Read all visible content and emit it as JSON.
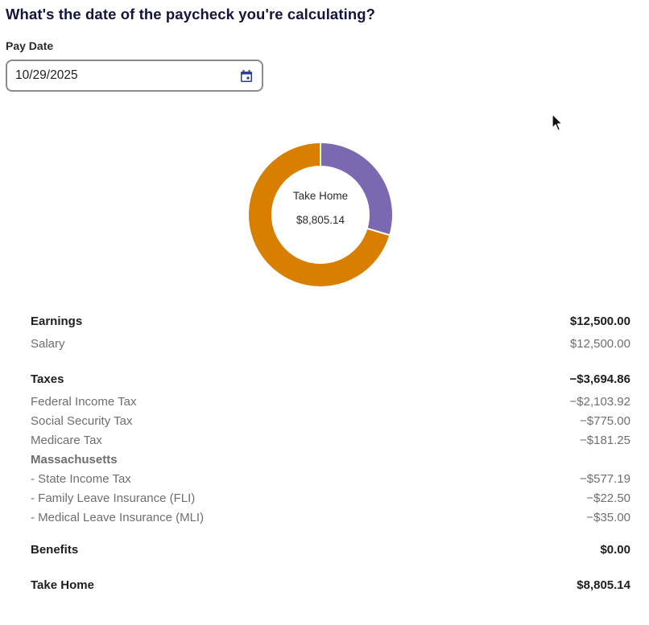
{
  "header": {
    "question": "What's the date of the paycheck you're calculating?"
  },
  "pay_date": {
    "label": "Pay Date",
    "value": "10/29/2025"
  },
  "icons": {
    "calendar": "calendar-icon",
    "cursor": "mouse-pointer-icon"
  },
  "colors": {
    "take_home": "#d97f00",
    "taxes": "#7a68b1",
    "title": "#14153a"
  },
  "chart_data": {
    "type": "pie",
    "donut": true,
    "center_title": "Take Home",
    "center_value": "$8,805.14",
    "slices": [
      {
        "category": "Taxes",
        "value": 3694.86,
        "color": "#7a68b1"
      },
      {
        "category": "Take Home",
        "value": 8805.14,
        "color": "#d97f00"
      }
    ]
  },
  "breakdown": {
    "earnings": {
      "label": "Earnings",
      "amount": "$12,500.00",
      "items": [
        {
          "label": "Salary",
          "amount": "$12,500.00"
        }
      ]
    },
    "taxes": {
      "label": "Taxes",
      "amount": "−$3,694.86",
      "items": [
        {
          "label": "Federal Income Tax",
          "amount": "−$2,103.92"
        },
        {
          "label": "Social Security Tax",
          "amount": "−$775.00"
        },
        {
          "label": "Medicare Tax",
          "amount": "−$181.25"
        }
      ],
      "state": {
        "label": "Massachusetts",
        "items": [
          {
            "label": "- State Income Tax",
            "amount": "−$577.19"
          },
          {
            "label": "- Family Leave Insurance (FLI)",
            "amount": "−$22.50"
          },
          {
            "label": "- Medical Leave Insurance (MLI)",
            "amount": "−$35.00"
          }
        ]
      }
    },
    "benefits": {
      "label": "Benefits",
      "amount": "$0.00"
    },
    "take_home": {
      "label": "Take Home",
      "amount": "$8,805.14"
    }
  }
}
